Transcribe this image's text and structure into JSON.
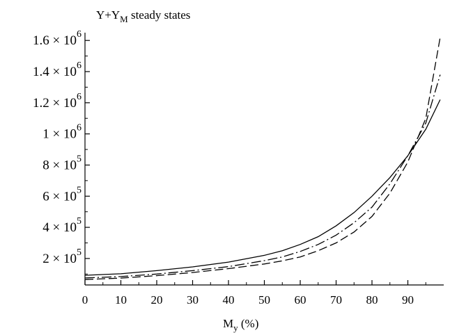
{
  "chart_data": {
    "type": "line",
    "title": {
      "main": "Y+Y",
      "sub": "M",
      "rest": " steady states"
    },
    "xlabel": {
      "main": "M",
      "sub": "y",
      "rest": " (%)"
    },
    "ylabel": "",
    "xlim": [
      0,
      100
    ],
    "ylim": [
      30000,
      1650000
    ],
    "grid": false,
    "legend": "none",
    "xticks": [
      {
        "value": 0,
        "label": "0"
      },
      {
        "value": 10,
        "label": "10"
      },
      {
        "value": 20,
        "label": "20"
      },
      {
        "value": 30,
        "label": "30"
      },
      {
        "value": 40,
        "label": "40"
      },
      {
        "value": 50,
        "label": "50"
      },
      {
        "value": 60,
        "label": "60"
      },
      {
        "value": 70,
        "label": "70"
      },
      {
        "value": 80,
        "label": "80"
      },
      {
        "value": 90,
        "label": "90"
      }
    ],
    "yticks": [
      {
        "value": 200000,
        "mant": "2 × 10",
        "exp": "5"
      },
      {
        "value": 400000,
        "mant": "4 × 10",
        "exp": "5"
      },
      {
        "value": 600000,
        "mant": "6 × 10",
        "exp": "5"
      },
      {
        "value": 800000,
        "mant": "8 × 10",
        "exp": "5"
      },
      {
        "value": 1000000,
        "mant": "1 × 10",
        "exp": "6"
      },
      {
        "value": 1200000,
        "mant": "1.2 × 10",
        "exp": "6"
      },
      {
        "value": 1400000,
        "mant": "1.4 × 10",
        "exp": "6"
      },
      {
        "value": 1600000,
        "mant": "1.6 × 10",
        "exp": "6"
      }
    ],
    "series": [
      {
        "style": "solid",
        "x": [
          0,
          10,
          20,
          30,
          40,
          50,
          55,
          60,
          65,
          70,
          75,
          80,
          85,
          90,
          95,
          99
        ],
        "y": [
          92000,
          102000,
          122000,
          146000,
          177000,
          220000,
          250000,
          290000,
          340000,
          410000,
          495000,
          600000,
          720000,
          860000,
          1030000,
          1220000
        ]
      },
      {
        "style": "dashdot",
        "x": [
          0,
          10,
          20,
          30,
          40,
          50,
          55,
          60,
          65,
          70,
          75,
          80,
          85,
          90,
          95,
          99
        ],
        "y": [
          75000,
          84000,
          100000,
          122000,
          148000,
          186000,
          210000,
          245000,
          290000,
          350000,
          430000,
          530000,
          680000,
          860000,
          1070000,
          1380000
        ]
      },
      {
        "style": "dashed",
        "x": [
          0,
          10,
          20,
          30,
          40,
          50,
          55,
          60,
          65,
          70,
          75,
          80,
          85,
          90,
          95,
          99
        ],
        "y": [
          65000,
          74000,
          90000,
          110000,
          135000,
          165000,
          185000,
          210000,
          250000,
          300000,
          370000,
          470000,
          620000,
          820000,
          1100000,
          1620000
        ]
      }
    ]
  }
}
